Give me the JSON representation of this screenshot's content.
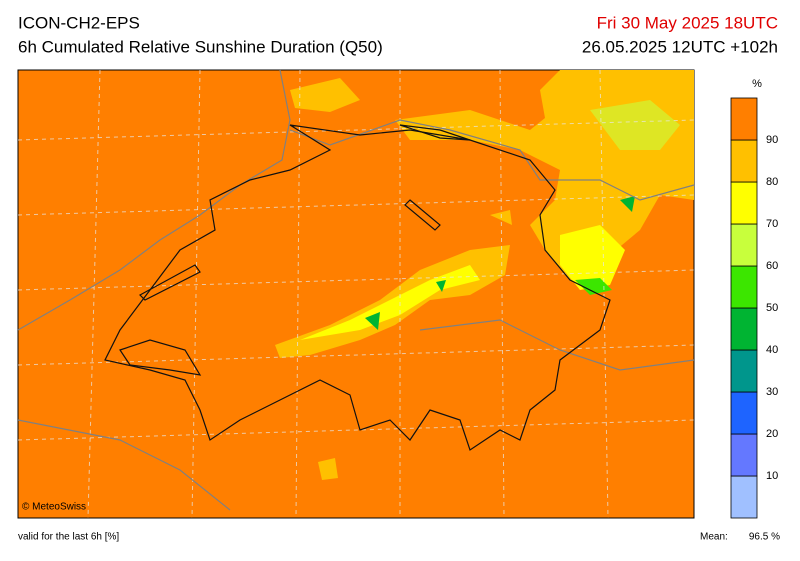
{
  "header": {
    "model": "ICON-CH2-EPS",
    "product": "6h Cumulated Relative Sunshine Duration (Q50)",
    "valid_time": "Fri 30 May 2025 18UTC",
    "run": "26.05.2025 12UTC +102h"
  },
  "map": {
    "copyright": "© MeteoSwiss"
  },
  "colorbar": {
    "unit": "%",
    "ticks": [
      10,
      20,
      30,
      40,
      50,
      60,
      70,
      80,
      90
    ],
    "colors": [
      "#a0c0ff",
      "#6478ff",
      "#1e64ff",
      "#00968c",
      "#00b432",
      "#3ce600",
      "#c8ff3c",
      "#ffff00",
      "#ffc000",
      "#ff7f00"
    ]
  },
  "footer": {
    "note": "valid for the last 6h [%]",
    "mean_label": "Mean:",
    "mean_value": "96.5 %"
  }
}
